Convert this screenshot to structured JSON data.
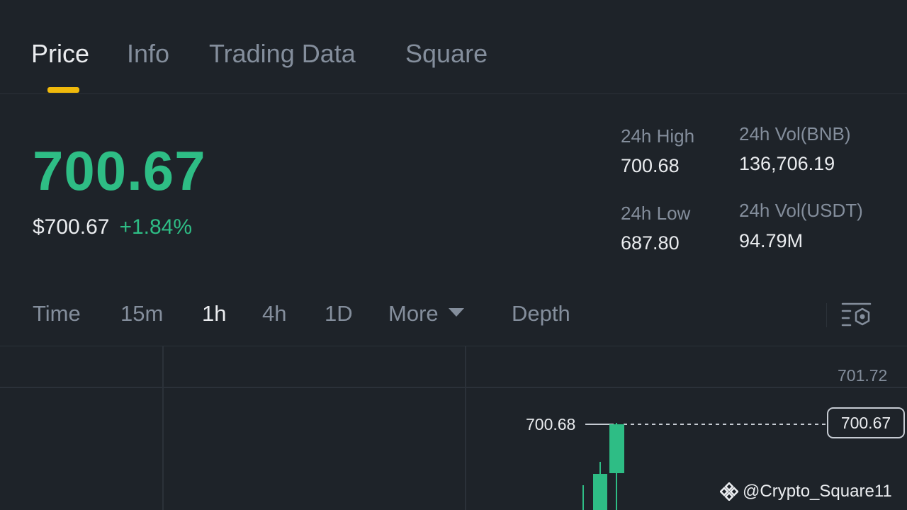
{
  "tabs": [
    {
      "label": "Price",
      "active": true
    },
    {
      "label": "Info",
      "active": false
    },
    {
      "label": "Trading Data",
      "active": false
    },
    {
      "label": "Square",
      "active": false
    }
  ],
  "price": {
    "last": "700.67",
    "usd": "$700.67",
    "change": "+1.84%"
  },
  "stats": {
    "high_label": "24h High",
    "high_value": "700.68",
    "low_label": "24h Low",
    "low_value": "687.80",
    "vol_base_label": "24h Vol(BNB)",
    "vol_base_value": "136,706.19",
    "vol_quote_label": "24h Vol(USDT)",
    "vol_quote_value": "94.79M"
  },
  "intervals": {
    "time": "Time",
    "m15": "15m",
    "h1": "1h",
    "h4": "4h",
    "d1": "1D",
    "more": "More",
    "depth": "Depth",
    "active": "1h"
  },
  "chart": {
    "axis_top": "701.72",
    "current_price": "700.67",
    "high_marker": "700.68"
  },
  "watermark": "@Crypto_Square11",
  "colors": {
    "background": "#1e2329",
    "up": "#2ebd85",
    "accent": "#f0b90b",
    "muted": "#848e9c",
    "text": "#eaecef"
  },
  "icons": {
    "settings": "chart-settings-icon",
    "caret": "caret-down-icon",
    "watermark_logo": "binance-logo-icon"
  }
}
